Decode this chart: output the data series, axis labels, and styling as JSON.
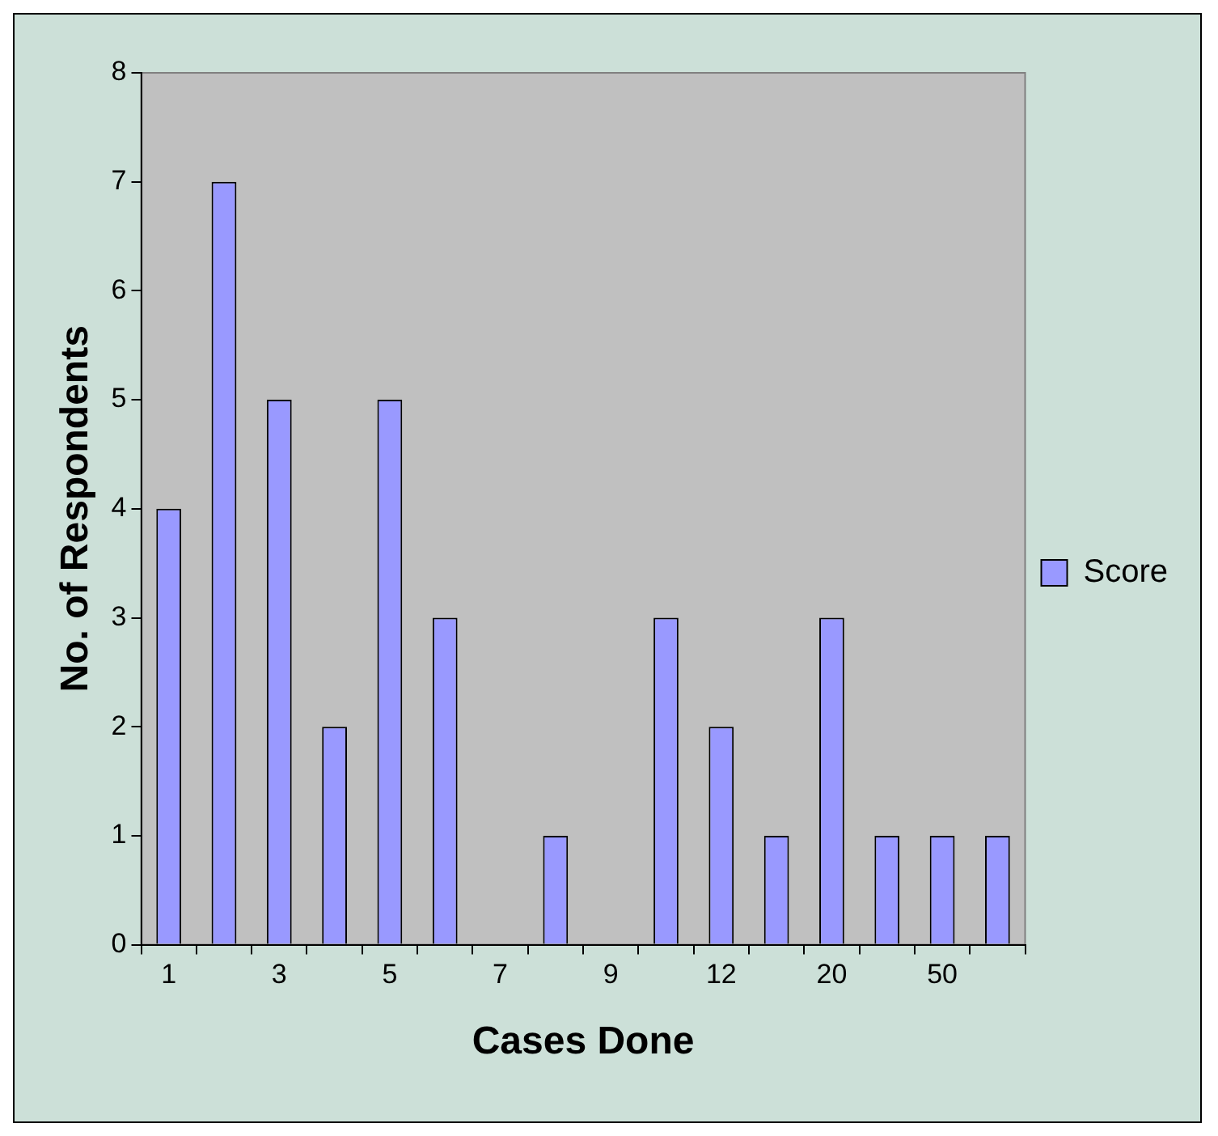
{
  "chart_data": {
    "type": "bar",
    "xlabel": "Cases Done",
    "ylabel": "No. of Respondents",
    "categories": [
      "1",
      null,
      "3",
      null,
      "5",
      null,
      "7",
      null,
      "9",
      null,
      "12",
      null,
      "20",
      null,
      "50",
      null
    ],
    "series": [
      {
        "name": "Score",
        "color": "#9999ff",
        "values": [
          4,
          7,
          5,
          2,
          5,
          3,
          0,
          1,
          0,
          3,
          2,
          1,
          3,
          1,
          1,
          1
        ]
      }
    ],
    "ylim": [
      0,
      8
    ],
    "yticks": [
      0,
      1,
      2,
      3,
      4,
      5,
      6,
      7,
      8
    ],
    "grid": false,
    "legend": "right"
  }
}
